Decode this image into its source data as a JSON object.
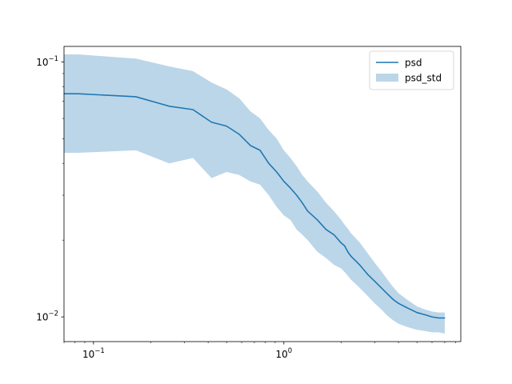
{
  "chart_data": {
    "type": "line",
    "title": "",
    "xlabel": "",
    "ylabel": "",
    "xscale": "log",
    "yscale": "log",
    "xlim": [
      0.07,
      8.5
    ],
    "ylim": [
      0.008,
      0.115
    ],
    "grid": false,
    "legend_position": "top-right",
    "x_major_ticks": [
      {
        "value": 0.1,
        "base": "10",
        "exp": "−1"
      },
      {
        "value": 1,
        "base": "10",
        "exp": "0"
      }
    ],
    "y_major_ticks": [
      {
        "value": 0.01,
        "base": "10",
        "exp": "−2"
      },
      {
        "value": 0.1,
        "base": "10",
        "exp": "−1"
      }
    ],
    "x_minor_ticks": [
      0.07,
      0.08,
      0.09,
      0.2,
      0.3,
      0.4,
      0.5,
      0.6,
      0.7,
      0.8,
      0.9,
      2,
      3,
      4,
      5,
      6,
      7,
      8
    ],
    "y_minor_ticks": [
      0.02,
      0.03,
      0.04,
      0.05,
      0.06,
      0.07,
      0.08,
      0.09
    ],
    "x": [
      0.07,
      0.083,
      0.167,
      0.25,
      0.333,
      0.417,
      0.5,
      0.583,
      0.667,
      0.75,
      0.833,
      0.917,
      1.0,
      1.083,
      1.167,
      1.25,
      1.333,
      1.5,
      1.667,
      1.833,
      2.0,
      2.083,
      2.167,
      2.25,
      2.5,
      2.75,
      3.0,
      3.25,
      3.5,
      3.75,
      4.0,
      4.5,
      5.0,
      5.5,
      6.0,
      6.5,
      7.0
    ],
    "series": [
      {
        "name": "psd",
        "color": "#1f77b4",
        "values": [
          0.075,
          0.075,
          0.073,
          0.067,
          0.065,
          0.058,
          0.056,
          0.052,
          0.047,
          0.045,
          0.04,
          0.037,
          0.034,
          0.032,
          0.03,
          0.028,
          0.026,
          0.024,
          0.022,
          0.021,
          0.0195,
          0.019,
          0.018,
          0.0173,
          0.016,
          0.0147,
          0.0138,
          0.013,
          0.0123,
          0.0117,
          0.0113,
          0.0108,
          0.0104,
          0.0102,
          0.01,
          0.0099,
          0.0099
        ]
      }
    ],
    "band": {
      "name": "psd_std",
      "color": "#1f77b4",
      "opacity": 0.3,
      "upper": [
        0.107,
        0.107,
        0.103,
        0.096,
        0.092,
        0.083,
        0.078,
        0.072,
        0.064,
        0.06,
        0.054,
        0.05,
        0.045,
        0.042,
        0.039,
        0.036,
        0.034,
        0.031,
        0.028,
        0.026,
        0.024,
        0.023,
        0.0222,
        0.0213,
        0.0196,
        0.0178,
        0.0163,
        0.0151,
        0.014,
        0.0131,
        0.0124,
        0.0116,
        0.011,
        0.0107,
        0.0105,
        0.0104,
        0.0104
      ],
      "lower": [
        0.044,
        0.044,
        0.045,
        0.04,
        0.042,
        0.035,
        0.037,
        0.036,
        0.034,
        0.033,
        0.03,
        0.027,
        0.025,
        0.024,
        0.022,
        0.021,
        0.02,
        0.018,
        0.017,
        0.016,
        0.0155,
        0.015,
        0.0145,
        0.014,
        0.013,
        0.0121,
        0.0113,
        0.0107,
        0.0101,
        0.0097,
        0.0094,
        0.0091,
        0.0089,
        0.0088,
        0.0087,
        0.0087,
        0.0086
      ]
    }
  }
}
